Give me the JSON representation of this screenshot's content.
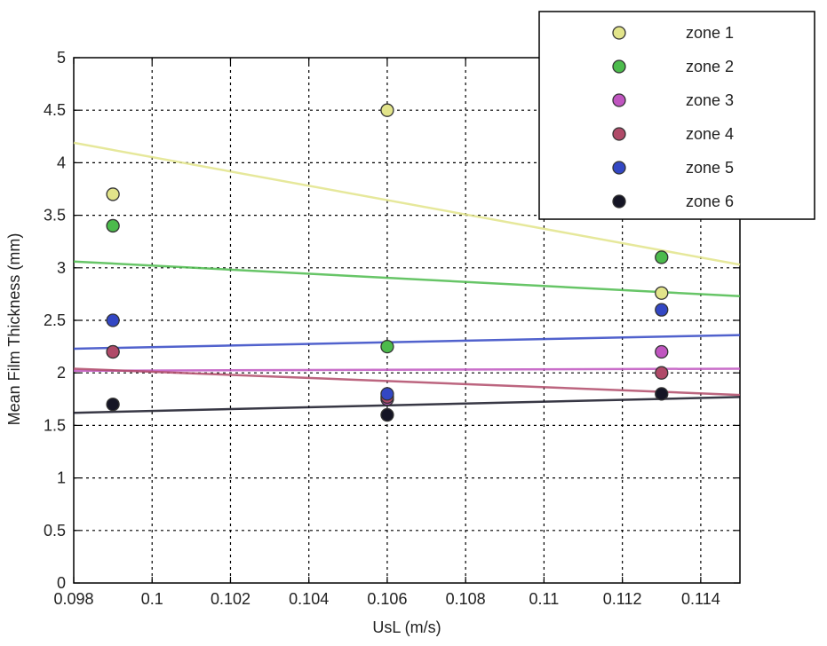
{
  "chart_data": {
    "type": "scatter",
    "xlabel": "UsL (m/s)",
    "ylabel": "Mean Film Thickness (mm)",
    "xlim": [
      0.098,
      0.115
    ],
    "ylim": [
      0,
      5
    ],
    "xticks": [
      "0.098",
      "0.1",
      "0.102",
      "0.104",
      "0.106",
      "0.108",
      "0.11",
      "0.112",
      "0.114"
    ],
    "yticks": [
      "0",
      "0.5",
      "1",
      "1.5",
      "2",
      "2.5",
      "3",
      "3.5",
      "4",
      "4.5",
      "5"
    ],
    "grid": true,
    "legend_position": "top-right",
    "series": [
      {
        "name": "zone 1",
        "color": "#e2e48a",
        "points": [
          [
            0.099,
            3.7
          ],
          [
            0.106,
            4.5
          ],
          [
            0.113,
            2.76
          ]
        ],
        "trend": [
          [
            0.098,
            4.19
          ],
          [
            0.115,
            3.03
          ]
        ]
      },
      {
        "name": "zone 2",
        "color": "#4cbb4c",
        "points": [
          [
            0.099,
            3.4
          ],
          [
            0.106,
            2.25
          ],
          [
            0.113,
            3.1
          ]
        ],
        "trend": [
          [
            0.098,
            3.06
          ],
          [
            0.115,
            2.73
          ]
        ]
      },
      {
        "name": "zone 3",
        "color": "#c055c0",
        "points": [
          [
            0.099,
            2.2
          ],
          [
            0.106,
            1.75
          ],
          [
            0.113,
            2.2
          ]
        ],
        "trend": [
          [
            0.098,
            2.02
          ],
          [
            0.115,
            2.04
          ]
        ]
      },
      {
        "name": "zone 4",
        "color": "#b04a68",
        "points": [
          [
            0.099,
            2.2
          ],
          [
            0.106,
            1.77
          ],
          [
            0.113,
            2.0
          ]
        ],
        "trend": [
          [
            0.098,
            2.04
          ],
          [
            0.115,
            1.79
          ]
        ]
      },
      {
        "name": "zone 5",
        "color": "#3347c4",
        "points": [
          [
            0.099,
            2.5
          ],
          [
            0.106,
            1.8
          ],
          [
            0.113,
            2.6
          ]
        ],
        "trend": [
          [
            0.098,
            2.23
          ],
          [
            0.115,
            2.36
          ]
        ]
      },
      {
        "name": "zone 6",
        "color": "#151525",
        "points": [
          [
            0.099,
            1.7
          ],
          [
            0.106,
            1.6
          ],
          [
            0.113,
            1.8
          ]
        ],
        "trend": [
          [
            0.098,
            1.62
          ],
          [
            0.115,
            1.77
          ]
        ]
      }
    ]
  }
}
